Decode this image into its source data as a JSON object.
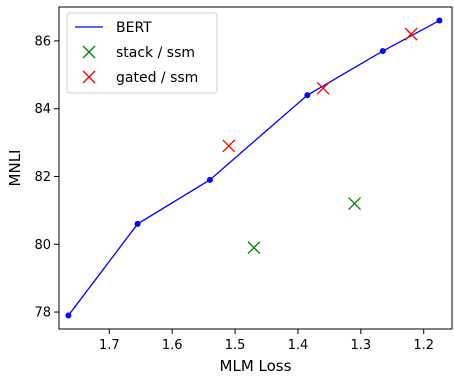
{
  "chart_data": {
    "type": "line",
    "title": "",
    "xlabel": "MLM Loss",
    "ylabel": "MNLI",
    "x_inverted": true,
    "xlim": [
      1.78,
      1.155
    ],
    "ylim": [
      77.5,
      87.0
    ],
    "xticks": [
      1.7,
      1.6,
      1.5,
      1.4,
      1.3,
      1.2
    ],
    "xtick_labels": [
      "1.7",
      "1.6",
      "1.5",
      "1.4",
      "1.3",
      "1.2"
    ],
    "yticks": [
      78,
      80,
      82,
      84,
      86
    ],
    "ytick_labels": [
      "78",
      "80",
      "82",
      "84",
      "86"
    ],
    "grid": false,
    "legend_placement": "top-left",
    "series": [
      {
        "name": "BERT",
        "kind": "line-with-markers",
        "color": "#0000ff",
        "x": [
          1.765,
          1.655,
          1.54,
          1.385,
          1.265,
          1.175
        ],
        "y": [
          77.9,
          80.6,
          81.9,
          84.4,
          85.7,
          86.6
        ]
      },
      {
        "name": "stack / ssm",
        "kind": "scatter-x",
        "color": "#008000",
        "x": [
          1.47,
          1.31
        ],
        "y": [
          79.9,
          81.2
        ]
      },
      {
        "name": "gated / ssm",
        "kind": "scatter-x",
        "color": "#ff0000",
        "x": [
          1.51,
          1.36,
          1.22
        ],
        "y": [
          82.9,
          84.6,
          86.2
        ]
      }
    ]
  }
}
